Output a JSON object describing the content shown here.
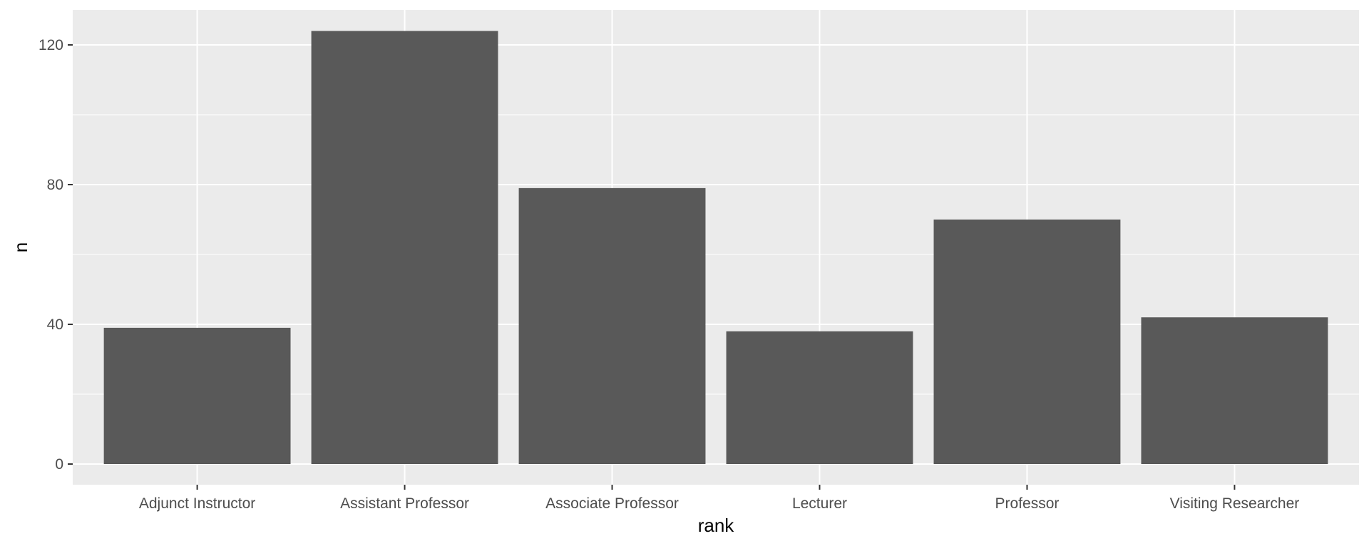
{
  "chart_data": {
    "type": "bar",
    "title": "",
    "xlabel": "rank",
    "ylabel": "n",
    "categories": [
      "Adjunct Instructor",
      "Assistant Professor",
      "Associate Professor",
      "Lecturer",
      "Professor",
      "Visiting Researcher"
    ],
    "values": [
      39,
      124,
      79,
      38,
      70,
      42
    ],
    "ylim": [
      0,
      130
    ],
    "yticks": [
      0,
      40,
      80,
      120
    ],
    "ytick_labels": [
      "0",
      "40",
      "80",
      "120"
    ],
    "grid": true,
    "legend": "none",
    "colors": {
      "bar": "#595959",
      "panel": "#ebebeb",
      "grid_major": "#ffffff",
      "tick_text": "#4d4d4d",
      "axis_title": "#000000"
    }
  }
}
